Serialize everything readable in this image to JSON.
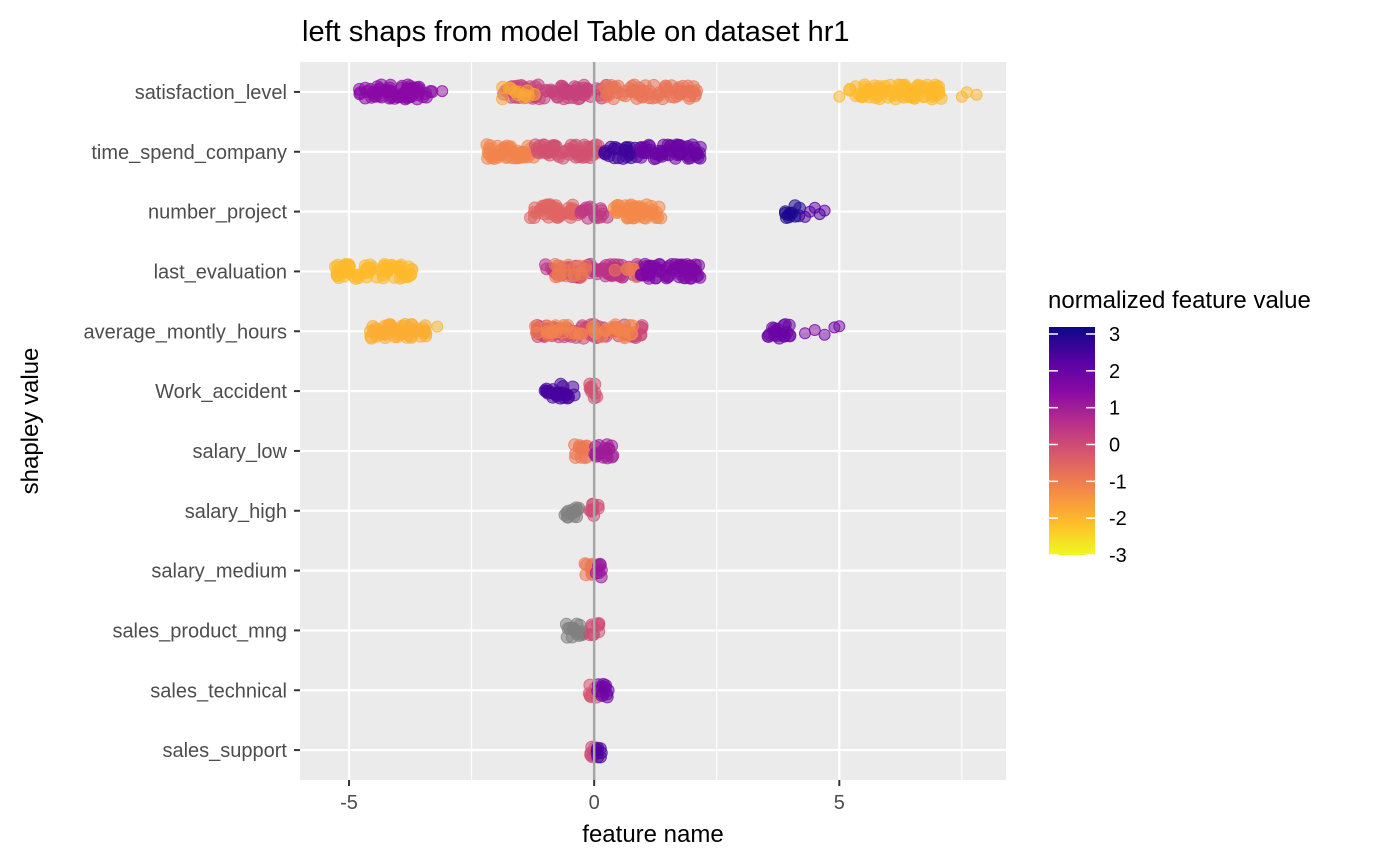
{
  "chart_data": {
    "type": "scatter",
    "title": "left shaps from model Table on dataset hr1",
    "xlabel": "feature name",
    "ylabel": "shapley value",
    "xlim": [
      -6.0,
      8.4
    ],
    "x_ticks": [
      -5,
      0,
      5
    ],
    "x_tick_labels": [
      "-5",
      "0",
      "5"
    ],
    "grid": true,
    "zero_line": 0,
    "categories": [
      "satisfaction_level",
      "time_spend_company",
      "number_project",
      "last_evaluation",
      "average_montly_hours",
      "Work_accident",
      "salary_low",
      "salary_high",
      "salary_medium",
      "sales_product_mng",
      "sales_technical",
      "sales_support"
    ],
    "series": [
      {
        "feature": "satisfaction_level",
        "clusters": [
          {
            "from": -4.8,
            "to": -3.3,
            "value": 1.3,
            "density": 1.0
          },
          {
            "from": -1.9,
            "to": 0.3,
            "value": 0.1,
            "density": 0.8
          },
          {
            "from": -1.9,
            "to": -1.2,
            "value": -1.8,
            "density": 0.4
          },
          {
            "from": 0.2,
            "to": 2.1,
            "value": -0.9,
            "density": 0.8
          },
          {
            "from": 5.2,
            "to": 7.1,
            "value": -2.1,
            "density": 1.0
          }
        ],
        "outliers": [
          [
            -3.1,
            1.2
          ],
          [
            5.0,
            -2.1
          ],
          [
            7.5,
            -2.0
          ],
          [
            7.8,
            -2.0
          ],
          [
            7.6,
            -2.1
          ]
        ]
      },
      {
        "feature": "time_spend_company",
        "clusters": [
          {
            "from": -2.2,
            "to": -1.2,
            "value": -1.2,
            "density": 1.0
          },
          {
            "from": -1.2,
            "to": 0.2,
            "value": -0.2,
            "density": 0.9
          },
          {
            "from": 0.2,
            "to": 0.9,
            "value": 2.4,
            "density": 0.7
          },
          {
            "from": 0.9,
            "to": 2.2,
            "value": 1.8,
            "density": 1.0
          }
        ],
        "outliers": []
      },
      {
        "feature": "number_project",
        "clusters": [
          {
            "from": -1.3,
            "to": -0.3,
            "value": -0.6,
            "density": 1.0
          },
          {
            "from": -0.3,
            "to": 0.3,
            "value": 0.3,
            "density": 0.6
          },
          {
            "from": 0.4,
            "to": 1.4,
            "value": -1.3,
            "density": 1.0
          },
          {
            "from": 3.9,
            "to": 4.2,
            "value": 2.8,
            "density": 0.8
          }
        ],
        "outliers": [
          [
            4.3,
            2.2
          ],
          [
            4.5,
            2.0
          ],
          [
            4.7,
            1.9
          ],
          [
            4.4,
            2.1
          ],
          [
            4.6,
            2.2
          ]
        ]
      },
      {
        "feature": "last_evaluation",
        "clusters": [
          {
            "from": -5.3,
            "to": -3.7,
            "value": -2.1,
            "density": 1.0
          },
          {
            "from": -1.0,
            "to": 0.9,
            "value": 0.4,
            "density": 0.9
          },
          {
            "from": -1.0,
            "to": 0.9,
            "value": -1.0,
            "density": 0.3
          },
          {
            "from": 0.9,
            "to": 2.2,
            "value": 1.5,
            "density": 1.0
          }
        ],
        "outliers": []
      },
      {
        "feature": "average_montly_hours",
        "clusters": [
          {
            "from": -4.6,
            "to": -3.4,
            "value": -1.9,
            "density": 1.0
          },
          {
            "from": -1.2,
            "to": 1.0,
            "value": 0.0,
            "density": 0.9
          },
          {
            "from": -1.2,
            "to": 1.0,
            "value": -1.2,
            "density": 0.4
          },
          {
            "from": 3.5,
            "to": 4.0,
            "value": 1.8,
            "density": 0.9
          }
        ],
        "outliers": [
          [
            -3.2,
            -2.0
          ],
          [
            4.3,
            1.6
          ],
          [
            4.5,
            1.5
          ],
          [
            4.7,
            1.7
          ],
          [
            4.9,
            1.8
          ],
          [
            5.0,
            1.6
          ]
        ]
      },
      {
        "feature": "Work_accident",
        "clusters": [
          {
            "from": -1.0,
            "to": -0.4,
            "value": 2.3,
            "density": 1.0
          },
          {
            "from": -0.1,
            "to": 0.1,
            "value": -0.2,
            "density": 1.0
          }
        ],
        "outliers": []
      },
      {
        "feature": "salary_low",
        "clusters": [
          {
            "from": -0.4,
            "to": -0.1,
            "value": -1.0,
            "density": 1.0
          },
          {
            "from": 0.0,
            "to": 0.4,
            "value": 0.9,
            "density": 1.0
          }
        ],
        "outliers": []
      },
      {
        "feature": "salary_high",
        "clusters": [
          {
            "from": -0.6,
            "to": -0.3,
            "value": null,
            "density": 1.0
          },
          {
            "from": -0.1,
            "to": 0.1,
            "value": -0.1,
            "density": 1.0
          }
        ],
        "outliers": []
      },
      {
        "feature": "salary_medium",
        "clusters": [
          {
            "from": -0.2,
            "to": 0.0,
            "value": -1.0,
            "density": 1.0
          },
          {
            "from": 0.0,
            "to": 0.15,
            "value": 1.0,
            "density": 1.0
          }
        ],
        "outliers": []
      },
      {
        "feature": "sales_product_mng",
        "clusters": [
          {
            "from": -0.6,
            "to": -0.2,
            "value": null,
            "density": 1.0
          },
          {
            "from": -0.1,
            "to": 0.1,
            "value": -0.1,
            "density": 1.0
          }
        ],
        "outliers": []
      },
      {
        "feature": "sales_technical",
        "clusters": [
          {
            "from": -0.1,
            "to": 0.05,
            "value": -0.3,
            "density": 1.0
          },
          {
            "from": 0.05,
            "to": 0.3,
            "value": 1.7,
            "density": 1.0
          }
        ],
        "outliers": []
      },
      {
        "feature": "sales_support",
        "clusters": [
          {
            "from": -0.1,
            "to": 0.05,
            "value": -0.1,
            "density": 1.0
          },
          {
            "from": 0.05,
            "to": 0.2,
            "value": 2.2,
            "density": 1.0
          }
        ],
        "outliers": []
      }
    ],
    "legend": {
      "title": "normalized feature value",
      "position": "right",
      "range": [
        -3,
        3
      ],
      "labels": [
        "3",
        "2",
        "1",
        "0",
        "-1",
        "-2",
        "-3"
      ],
      "palette": [
        "#0D0887",
        "#5402A3",
        "#8B0AA5",
        "#B93289",
        "#DB5C68",
        "#F48849",
        "#FEBC2A",
        "#F0F921"
      ],
      "na_color": "#808080"
    },
    "colors": {
      "panel_background": "#EBEBEB",
      "grid_major": "#FFFFFF",
      "zero_line": "#A6A6A6"
    }
  }
}
